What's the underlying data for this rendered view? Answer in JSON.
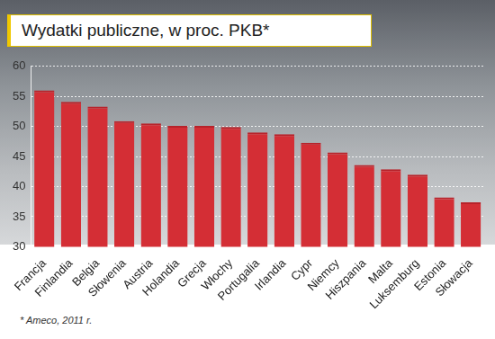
{
  "chart_data": {
    "type": "bar",
    "title": "Wydatki publiczne, w proc. PKB*",
    "annotations": [
      "* Ameco, 2011 r."
    ],
    "categories": [
      "Francja",
      "Finlandia",
      "Belgia",
      "Słowenia",
      "Austria",
      "Holandia",
      "Grecja",
      "Włochy",
      "Portugalia",
      "Irlandia",
      "Cypr",
      "Niemcy",
      "Hiszpania",
      "Malta",
      "Luksemburg",
      "Estonia",
      "Słowacja"
    ],
    "values": [
      56.0,
      54.1,
      53.3,
      50.9,
      50.5,
      50.1,
      50.1,
      49.9,
      49.0,
      48.7,
      47.3,
      45.7,
      43.6,
      42.9,
      42.0,
      38.2,
      37.4
    ],
    "color": "#d42e35",
    "ylim": [
      30,
      60
    ],
    "yticks": [
      30,
      35,
      40,
      45,
      50,
      55,
      60
    ],
    "grid": true
  }
}
